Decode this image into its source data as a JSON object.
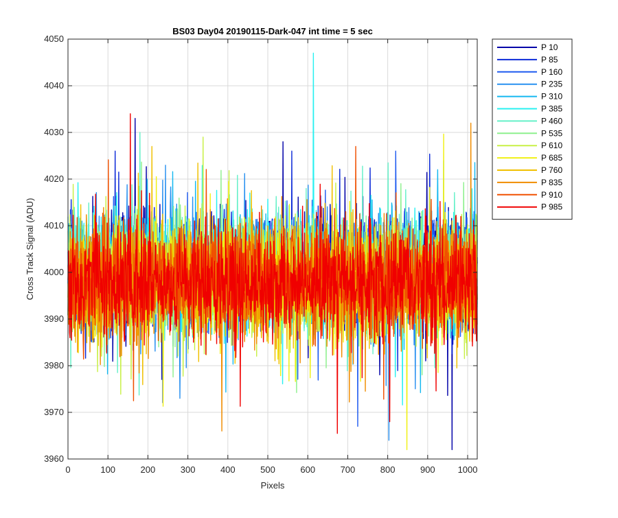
{
  "chart_data": {
    "type": "line",
    "title": "BS03 Day04 20190115-Dark-047 int time = 5 sec",
    "xlabel": "Pixels",
    "ylabel": "Cross Track Signal (ADU)",
    "xlim": [
      0,
      1024
    ],
    "ylim": [
      3960,
      4050
    ],
    "xticks": [
      "0",
      "100",
      "200",
      "300",
      "400",
      "500",
      "600",
      "700",
      "800",
      "900",
      "1000"
    ],
    "yticks": [
      "3960",
      "3970",
      "3980",
      "3990",
      "4000",
      "4010",
      "4020",
      "4030",
      "4040",
      "4050"
    ],
    "grid": true,
    "legend_position": "outside-top-right",
    "series": [
      {
        "name": "P 10",
        "color": "#0000A8",
        "center": 4000,
        "spread": 9,
        "peaks": [
          [
            168,
            4033
          ],
          [
            538,
            4028
          ],
          [
            961,
            3962
          ]
        ]
      },
      {
        "name": "P 85",
        "color": "#0A28D8",
        "center": 4000,
        "spread": 9,
        "peaks": [
          [
            118,
            4026
          ],
          [
            560,
            4026
          ]
        ]
      },
      {
        "name": "P 160",
        "color": "#1E5AF0",
        "center": 4000,
        "spread": 9,
        "peaks": [
          [
            725,
            3967
          ],
          [
            820,
            4026
          ]
        ]
      },
      {
        "name": "P 235",
        "color": "#2890F0",
        "center": 4000,
        "spread": 9,
        "peaks": [
          [
            280,
            3973
          ],
          [
            803,
            3964
          ]
        ]
      },
      {
        "name": "P 310",
        "color": "#14B8F0",
        "center": 4000,
        "spread": 9,
        "peaks": [
          [
            940,
            4024
          ]
        ]
      },
      {
        "name": "P 385",
        "color": "#28F0F0",
        "center": 4000,
        "spread": 9,
        "peaks": [
          [
            614,
            4047
          ]
        ]
      },
      {
        "name": "P 460",
        "color": "#64F0C8",
        "center": 4000,
        "spread": 9,
        "peaks": [
          [
            180,
            4030
          ]
        ]
      },
      {
        "name": "P 535",
        "color": "#8CF08C",
        "center": 4000,
        "spread": 9,
        "peaks": []
      },
      {
        "name": "P 610",
        "color": "#C8F046",
        "center": 3998,
        "spread": 9,
        "peaks": [
          [
            338,
            4029
          ]
        ]
      },
      {
        "name": "P 685",
        "color": "#F0F014",
        "center": 3998,
        "spread": 9,
        "peaks": [
          [
            848,
            3962
          ]
        ]
      },
      {
        "name": "P 760",
        "color": "#F0C000",
        "center": 3998,
        "spread": 9,
        "peaks": [
          [
            210,
            4027
          ]
        ]
      },
      {
        "name": "P 835",
        "color": "#F08C00",
        "center": 3998,
        "spread": 9,
        "peaks": [
          [
            385,
            3966
          ],
          [
            1008,
            4032
          ]
        ]
      },
      {
        "name": "P 910",
        "color": "#F05000",
        "center": 3998,
        "spread": 9,
        "peaks": [
          [
            720,
            4027
          ]
        ]
      },
      {
        "name": "P 985",
        "color": "#F00000",
        "center": 3998,
        "spread": 9,
        "peaks": [
          [
            156,
            4034
          ],
          [
            805,
            3968
          ]
        ]
      }
    ]
  }
}
